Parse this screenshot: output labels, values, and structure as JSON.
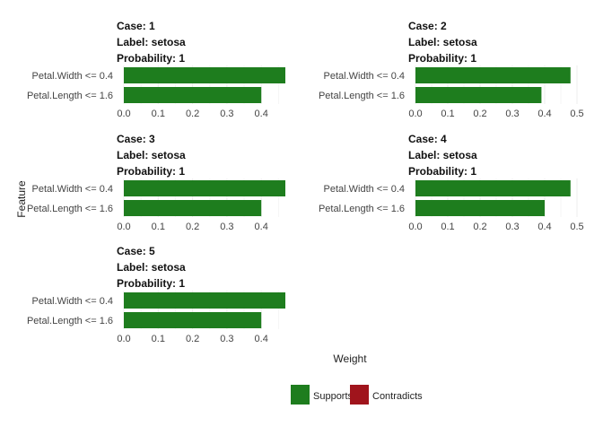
{
  "chart_data": [
    {
      "type": "bar",
      "orientation": "horizontal",
      "header": [
        "Case: 1",
        "Label: setosa",
        "Probability: 1"
      ],
      "categories": [
        "Petal.Width <= 0.4",
        "Petal.Length <= 1.6"
      ],
      "values": [
        0.47,
        0.4
      ],
      "support": [
        "Supports",
        "Supports"
      ],
      "xticks": [
        "0.0",
        "0.1",
        "0.2",
        "0.3",
        "0.4"
      ],
      "xlim": [
        0,
        0.47
      ],
      "grid": true
    },
    {
      "type": "bar",
      "orientation": "horizontal",
      "header": [
        "Case: 2",
        "Label: setosa",
        "Probability: 1"
      ],
      "categories": [
        "Petal.Width <= 0.4",
        "Petal.Length <= 1.6"
      ],
      "values": [
        0.48,
        0.39
      ],
      "support": [
        "Supports",
        "Supports"
      ],
      "xticks": [
        "0.0",
        "0.1",
        "0.2",
        "0.3",
        "0.4",
        "0.5"
      ],
      "xlim": [
        0,
        0.5
      ],
      "grid": true
    },
    {
      "type": "bar",
      "orientation": "horizontal",
      "header": [
        "Case: 3",
        "Label: setosa",
        "Probability: 1"
      ],
      "categories": [
        "Petal.Width <= 0.4",
        "Petal.Length <= 1.6"
      ],
      "values": [
        0.47,
        0.4
      ],
      "support": [
        "Supports",
        "Supports"
      ],
      "xticks": [
        "0.0",
        "0.1",
        "0.2",
        "0.3",
        "0.4"
      ],
      "xlim": [
        0,
        0.47
      ],
      "grid": true
    },
    {
      "type": "bar",
      "orientation": "horizontal",
      "header": [
        "Case: 4",
        "Label: setosa",
        "Probability: 1"
      ],
      "categories": [
        "Petal.Width <= 0.4",
        "Petal.Length <= 1.6"
      ],
      "values": [
        0.48,
        0.4
      ],
      "support": [
        "Supports",
        "Supports"
      ],
      "xticks": [
        "0.0",
        "0.1",
        "0.2",
        "0.3",
        "0.4",
        "0.5"
      ],
      "xlim": [
        0,
        0.5
      ],
      "grid": true
    },
    {
      "type": "bar",
      "orientation": "horizontal",
      "header": [
        "Case: 5",
        "Label: setosa",
        "Probability: 1"
      ],
      "categories": [
        "Petal.Width <= 0.4",
        "Petal.Length <= 1.6"
      ],
      "values": [
        0.47,
        0.4
      ],
      "support": [
        "Supports",
        "Supports"
      ],
      "xticks": [
        "0.0",
        "0.1",
        "0.2",
        "0.3",
        "0.4"
      ],
      "xlim": [
        0,
        0.47
      ],
      "grid": true
    }
  ],
  "axes": {
    "xlabel": "Weight",
    "ylabel": "Feature"
  },
  "legend": {
    "placement": "bottom",
    "items": [
      {
        "label": "Supports",
        "color": "#1e7d1e"
      },
      {
        "label": "Contradicts",
        "color": "#a0141c"
      }
    ]
  }
}
